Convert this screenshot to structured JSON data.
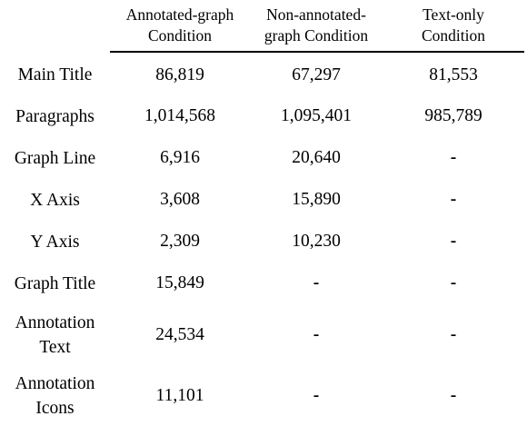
{
  "table": {
    "columns": [
      {
        "line1": "Annotated-graph",
        "line2": "Condition"
      },
      {
        "line1": "Non-annotated-",
        "line2": "graph Condition"
      },
      {
        "line1": "Text-only",
        "line2": "Condition"
      }
    ],
    "rows": [
      {
        "label1": "Main Title",
        "label2": "",
        "values": [
          "86,819",
          "67,297",
          "81,553"
        ]
      },
      {
        "label1": "Paragraphs",
        "label2": "",
        "values": [
          "1,014,568",
          "1,095,401",
          "985,789"
        ]
      },
      {
        "label1": "Graph Line",
        "label2": "",
        "values": [
          "6,916",
          "20,640",
          "-"
        ]
      },
      {
        "label1": "X Axis",
        "label2": "",
        "values": [
          "3,608",
          "15,890",
          "-"
        ]
      },
      {
        "label1": "Y Axis",
        "label2": "",
        "values": [
          "2,309",
          "10,230",
          "-"
        ]
      },
      {
        "label1": "Graph Title",
        "label2": "",
        "values": [
          "15,849",
          "-",
          "-"
        ]
      },
      {
        "label1": "Annotation",
        "label2": "Text",
        "values": [
          "24,534",
          "-",
          "-"
        ]
      },
      {
        "label1": "Annotation",
        "label2": "Icons",
        "values": [
          "11,101",
          "-",
          "-"
        ]
      }
    ]
  }
}
